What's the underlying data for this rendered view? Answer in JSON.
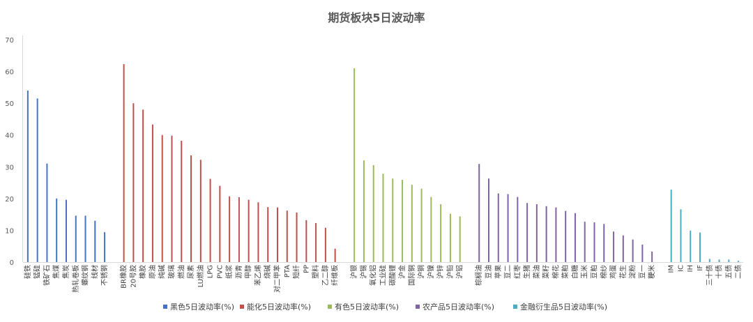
{
  "chart_data": {
    "type": "bar",
    "title": "期货板块5日波动率",
    "ylim": [
      0,
      70
    ],
    "yticks": [
      0,
      10,
      20,
      30,
      40,
      50,
      60,
      70
    ],
    "grid": false,
    "legend_position": "bottom",
    "series": [
      {
        "name": "黑色5日波动率(%)",
        "color": "#4472C4",
        "categories": [
          "硅铁",
          "锰硅",
          "铁矿石",
          "焦煤",
          "焦炭",
          "热轧卷板",
          "螺纹钢",
          "线材",
          "不锈钢"
        ],
        "values": [
          54,
          51.5,
          31,
          20,
          19.6,
          14.6,
          14.6,
          13,
          9.4
        ]
      },
      {
        "name": "能化5日波动率(%)",
        "color": "#C0504D",
        "categories": [
          "BR橡胶",
          "20号胶",
          "橡胶",
          "原油",
          "纯碱",
          "玻璃",
          "燃油",
          "尿素",
          "LU燃油",
          "LPG",
          "PVC",
          "纸浆",
          "沥青",
          "甲醇",
          "苯乙烯",
          "烧碱",
          "对二甲苯",
          "PTA",
          "短纤",
          "PP",
          "塑料",
          "乙二醇",
          "纤维板"
        ],
        "values": [
          62.3,
          50,
          48,
          43.3,
          40,
          39.8,
          38.2,
          33.6,
          32.2,
          26.2,
          24,
          20.7,
          20.4,
          19.6,
          18.8,
          17.3,
          17.2,
          16.2,
          15.6,
          13.2,
          12.3,
          10.8,
          4.2
        ]
      },
      {
        "name": "有色5日波动率(%)",
        "color": "#9BBB59",
        "categories": [
          "沪银",
          "沪锡",
          "氧化铝",
          "工业硅",
          "碳酸锂",
          "沪金",
          "国际铜",
          "沪铜",
          "沪镍",
          "沪锌",
          "沪铅",
          "沪铝"
        ],
        "values": [
          61,
          32,
          30.5,
          27.8,
          26.3,
          25.9,
          24.3,
          23.1,
          20.5,
          18.2,
          15.2,
          14.4
        ]
      },
      {
        "name": "农产品5日波动率(%)",
        "color": "#8064A2",
        "categories": [
          "棕榈油",
          "豆油",
          "苹果",
          "豆二",
          "红枣",
          "生猪",
          "菜油",
          "菜籽",
          "棉花",
          "菜粕",
          "白糖",
          "玉米",
          "豆粕",
          "棉纱",
          "鸡蛋",
          "花生",
          "淀粉",
          "豆一",
          "粳米"
        ],
        "values": [
          30.9,
          26.3,
          21.6,
          21.4,
          20.5,
          18.6,
          18.2,
          17.6,
          17.2,
          16.1,
          15.4,
          12.7,
          12.5,
          12,
          9.6,
          8.4,
          7.1,
          5.5,
          3.3
        ]
      },
      {
        "name": "金融衍生品5日波动率(%)",
        "color": "#4BACC6",
        "categories": [
          "IM",
          "IC",
          "IH",
          "IF",
          "三十债",
          "十债",
          "五债",
          "二债"
        ],
        "values": [
          22.8,
          16.6,
          9.9,
          9.3,
          1,
          0.8,
          0.8,
          0.4
        ]
      }
    ]
  }
}
